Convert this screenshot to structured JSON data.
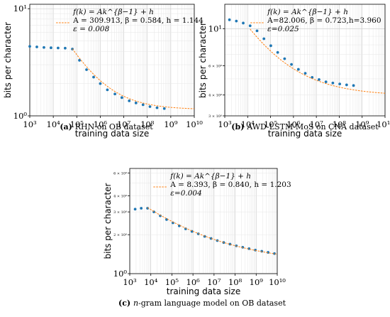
{
  "chart_data": [
    {
      "type": "scatter",
      "caption_label": "(a)",
      "caption": "RHN on OB dataset",
      "xlabel": "training data size",
      "ylabel": "bits per character",
      "xscale": "log",
      "yscale": "log",
      "xlim": [
        1000,
        10000000000
      ],
      "ylim": [
        1,
        11
      ],
      "yticks": [
        {
          "value": 1,
          "label": "10⁰"
        },
        {
          "value": 10,
          "label": "10¹"
        }
      ],
      "grid": true,
      "legend_lines": [
        "f(k) = Ak^{β−1} + h",
        "A = 309.913, β = 0.584, h = 1.144",
        "ε = 0.008"
      ],
      "legend_placement": "top-right",
      "series": [
        {
          "kind": "points",
          "x": [
            1000,
            2000,
            4000,
            8000,
            16000,
            32000,
            65000,
            130000,
            260000,
            520000,
            1000000,
            2000000,
            4200000,
            8300000,
            17000000,
            33000000,
            66000000,
            130000000,
            260000000,
            530000000
          ],
          "y": [
            4.45,
            4.4,
            4.35,
            4.32,
            4.3,
            4.28,
            4.2,
            3.3,
            2.7,
            2.3,
            2.0,
            1.75,
            1.6,
            1.48,
            1.38,
            1.32,
            1.27,
            1.22,
            1.19,
            1.17
          ]
        },
        {
          "kind": "fit",
          "A": 309.913,
          "beta": 0.584,
          "h": 1.144,
          "x_from": 65000,
          "x_to": 10000000000
        }
      ]
    },
    {
      "type": "scatter",
      "caption_label": "(b)",
      "caption": "AWD-LSTM-MoS on CNA dataset",
      "xlabel": "training data size",
      "ylabel": "bits per character",
      "xscale": "log",
      "yscale": "log",
      "xlim": [
        1000,
        10000000000
      ],
      "ylim": [
        3,
        14
      ],
      "yticks": [
        {
          "value": 3,
          "label": "3 × 10⁰",
          "small": true
        },
        {
          "value": 4,
          "label": "4 × 10⁰",
          "small": true
        },
        {
          "value": 6,
          "label": "6 × 10⁰",
          "small": true
        },
        {
          "value": 10,
          "label": "10¹"
        }
      ],
      "grid": true,
      "legend_lines": [
        "f(k) = Ak^{β−1} + h",
        "A=82.006, β = 0.723,h=3.960",
        "ε=0.025"
      ],
      "legend_placement": "top-right",
      "series": [
        {
          "kind": "points",
          "x": [
            1600,
            3200,
            6400,
            12800,
            25600,
            51200,
            102400,
            204800,
            409600,
            819200,
            1640000,
            3280000,
            6550000,
            13100000,
            26200000,
            52400000,
            105000000,
            210000000,
            420000000
          ],
          "y": [
            11.3,
            11.1,
            10.8,
            10.4,
            9.7,
            8.7,
            7.9,
            7.2,
            6.6,
            6.1,
            5.7,
            5.4,
            5.1,
            4.95,
            4.8,
            4.72,
            4.66,
            4.6,
            4.56
          ]
        },
        {
          "kind": "fit",
          "A": 82.006,
          "beta": 0.723,
          "h": 3.96,
          "x_from": 12800,
          "x_to": 10000000000
        }
      ]
    },
    {
      "type": "scatter",
      "caption_label": "(c)",
      "caption_prefix_italic": "n",
      "caption": "-gram language model on OB dataset",
      "xlabel": "training data size",
      "ylabel": "bits per character",
      "xscale": "log",
      "yscale": "log",
      "xlim": [
        1000,
        10000000000
      ],
      "ylim": [
        1,
        6.5
      ],
      "yticks": [
        {
          "value": 1,
          "label": "10⁰"
        },
        {
          "value": 2,
          "label": "2 × 10⁰",
          "small": true
        },
        {
          "value": 3,
          "label": "3 × 10⁰",
          "small": true
        },
        {
          "value": 4,
          "label": "4 × 10⁰",
          "small": true
        },
        {
          "value": 6,
          "label": "6 × 10⁰",
          "small": true
        }
      ],
      "grid": true,
      "legend_lines": [
        "f(k) = Ak^{β−1} + h",
        "A = 8.393, β = 0.840, h = 1.203",
        "ε=0.004"
      ],
      "legend_placement": "top-right",
      "series": [
        {
          "kind": "points",
          "x": [
            1800,
            3500,
            7000,
            14000,
            28000,
            56000,
            112000,
            224000,
            448000,
            896000,
            1800000,
            3600000,
            7200000,
            14300000,
            28700000,
            57300000,
            115000000,
            229000000,
            459000000,
            918000000,
            1840000000,
            3670000000,
            7340000000
          ],
          "y": [
            3.15,
            3.2,
            3.2,
            3.0,
            2.8,
            2.62,
            2.47,
            2.34,
            2.22,
            2.12,
            2.03,
            1.94,
            1.87,
            1.8,
            1.74,
            1.69,
            1.64,
            1.6,
            1.56,
            1.52,
            1.49,
            1.46,
            1.43
          ]
        },
        {
          "kind": "fit",
          "A": 8.393,
          "beta": 0.84,
          "h": 1.203,
          "x_from": 7000,
          "x_to": 10000000000
        }
      ]
    }
  ]
}
